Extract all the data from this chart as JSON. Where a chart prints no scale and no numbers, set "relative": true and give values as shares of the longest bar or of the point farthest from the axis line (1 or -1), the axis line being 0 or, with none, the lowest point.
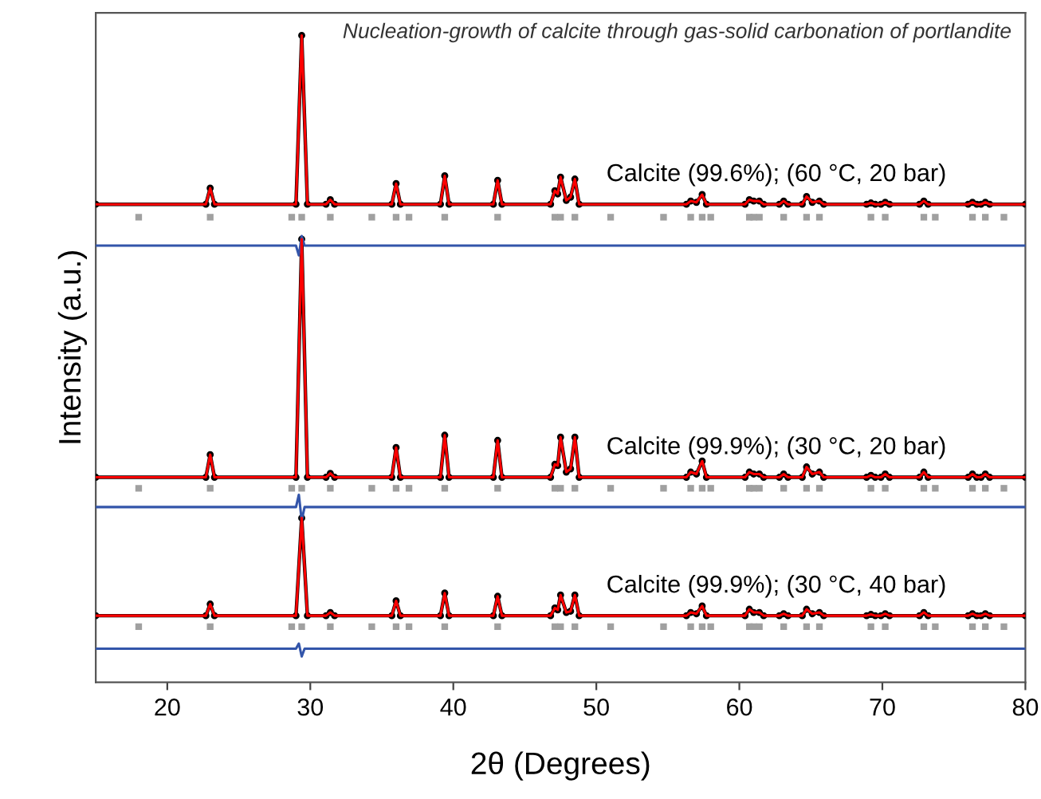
{
  "chart_data": {
    "type": "line",
    "relative": true,
    "title": "Nucleation-growth of calcite through gas-solid carbonation of portlandite",
    "xlabel": "2θ (Degrees)",
    "ylabel": "Intensity (a.u.)",
    "xlim": [
      15,
      80
    ],
    "xticks": [
      20,
      30,
      40,
      50,
      60,
      70,
      80
    ],
    "grid": false,
    "legend": false,
    "tick_labels": "x",
    "series": [
      {
        "name": "Calcite (99.6%); (60 °C, 20 bar)",
        "color": "#000000",
        "marker": "circle",
        "x": [
          15,
          22.7,
          23.0,
          23.3,
          29.0,
          29.4,
          29.8,
          31.1,
          31.4,
          31.7,
          35.7,
          36.0,
          36.3,
          39.1,
          39.4,
          39.7,
          42.8,
          43.1,
          43.4,
          46.8,
          47.1,
          47.3,
          47.5,
          47.9,
          48.2,
          48.5,
          48.8,
          56.3,
          56.6,
          57.0,
          57.4,
          57.7,
          60.4,
          60.7,
          61.0,
          61.4,
          61.7,
          62.8,
          63.1,
          63.4,
          64.4,
          64.7,
          65.1,
          65.6,
          65.9,
          68.9,
          69.2,
          69.5,
          69.9,
          70.2,
          70.5,
          72.6,
          72.9,
          73.2,
          76.0,
          76.3,
          76.6,
          76.9,
          77.2,
          77.5,
          80
        ],
        "values": [
          0.739,
          0.739,
          0.764,
          0.739,
          0.739,
          1.0,
          0.739,
          0.739,
          0.746,
          0.739,
          0.739,
          0.771,
          0.739,
          0.739,
          0.783,
          0.739,
          0.739,
          0.776,
          0.739,
          0.739,
          0.76,
          0.755,
          0.781,
          0.745,
          0.75,
          0.778,
          0.739,
          0.739,
          0.744,
          0.742,
          0.754,
          0.739,
          0.739,
          0.746,
          0.744,
          0.744,
          0.739,
          0.739,
          0.744,
          0.739,
          0.739,
          0.751,
          0.742,
          0.744,
          0.739,
          0.739,
          0.741,
          0.739,
          0.739,
          0.742,
          0.739,
          0.739,
          0.744,
          0.739,
          0.739,
          0.742,
          0.739,
          0.739,
          0.742,
          0.739,
          0.739
        ]
      },
      {
        "color": "#ff0000",
        "x": [
          15,
          22.7,
          23.0,
          23.3,
          29.0,
          29.4,
          29.8,
          31.1,
          31.4,
          31.7,
          35.7,
          36.0,
          36.3,
          39.1,
          39.4,
          39.7,
          42.8,
          43.1,
          43.4,
          46.8,
          47.1,
          47.3,
          47.5,
          47.9,
          48.2,
          48.5,
          48.8,
          56.3,
          56.6,
          57.0,
          57.4,
          57.7,
          60.4,
          60.7,
          61.0,
          61.4,
          61.7,
          62.8,
          63.1,
          63.4,
          64.4,
          64.7,
          65.1,
          65.6,
          65.9,
          68.9,
          69.2,
          69.5,
          69.9,
          70.2,
          70.5,
          72.6,
          72.9,
          73.2,
          76.0,
          76.3,
          76.6,
          76.9,
          77.2,
          77.5,
          80
        ],
        "values": [
          0.739,
          0.739,
          0.764,
          0.739,
          0.739,
          1.0,
          0.739,
          0.739,
          0.746,
          0.739,
          0.739,
          0.771,
          0.739,
          0.739,
          0.783,
          0.739,
          0.739,
          0.776,
          0.739,
          0.739,
          0.76,
          0.755,
          0.781,
          0.745,
          0.75,
          0.778,
          0.739,
          0.739,
          0.744,
          0.742,
          0.754,
          0.739,
          0.739,
          0.746,
          0.744,
          0.744,
          0.739,
          0.739,
          0.744,
          0.739,
          0.739,
          0.751,
          0.742,
          0.744,
          0.739,
          0.739,
          0.741,
          0.739,
          0.739,
          0.742,
          0.739,
          0.739,
          0.744,
          0.739,
          0.739,
          0.742,
          0.739,
          0.739,
          0.742,
          0.739,
          0.739
        ]
      },
      {
        "type": "scatter",
        "color": "#a0a0a0",
        "marker": "square",
        "x": [
          18.0,
          23.0,
          28.7,
          29.4,
          31.4,
          34.3,
          36.0,
          36.9,
          39.4,
          43.1,
          47.1,
          47.5,
          48.5,
          51.0,
          54.7,
          56.6,
          57.4,
          58.0,
          60.7,
          61.0,
          61.4,
          63.1,
          64.7,
          65.6,
          69.2,
          70.2,
          72.9,
          73.7,
          76.3,
          77.2,
          78.5
        ],
        "values": [
          0.719,
          0.719,
          0.719,
          0.719,
          0.719,
          0.719,
          0.719,
          0.719,
          0.719,
          0.719,
          0.719,
          0.719,
          0.719,
          0.719,
          0.719,
          0.719,
          0.719,
          0.719,
          0.719,
          0.719,
          0.719,
          0.719,
          0.719,
          0.719,
          0.719,
          0.719,
          0.719,
          0.719,
          0.719,
          0.719,
          0.719
        ]
      },
      {
        "color": "#3355aa",
        "x": [
          15,
          29.0,
          29.2,
          29.4,
          29.6,
          80
        ],
        "values": [
          0.675,
          0.675,
          0.66,
          0.69,
          0.675,
          0.675
        ]
      },
      {
        "name": "Calcite (99.9%); (30 °C, 20 bar)",
        "color": "#000000",
        "marker": "circle",
        "x": [
          15,
          22.7,
          23.0,
          23.3,
          29.0,
          29.4,
          29.8,
          31.1,
          31.4,
          31.7,
          35.7,
          36.0,
          36.3,
          39.1,
          39.4,
          39.7,
          42.8,
          43.1,
          43.4,
          46.8,
          47.1,
          47.3,
          47.5,
          47.9,
          48.2,
          48.5,
          48.8,
          56.3,
          56.6,
          57.0,
          57.4,
          57.7,
          60.4,
          60.7,
          61.0,
          61.4,
          61.7,
          62.8,
          63.1,
          63.4,
          64.4,
          64.7,
          65.1,
          65.6,
          65.9,
          68.9,
          69.2,
          69.5,
          69.9,
          70.2,
          70.5,
          72.6,
          72.9,
          73.2,
          76.0,
          76.3,
          76.6,
          76.9,
          77.2,
          77.5,
          80
        ],
        "values": [
          0.317,
          0.317,
          0.352,
          0.317,
          0.317,
          0.685,
          0.317,
          0.317,
          0.323,
          0.317,
          0.317,
          0.363,
          0.317,
          0.317,
          0.382,
          0.317,
          0.317,
          0.374,
          0.317,
          0.317,
          0.337,
          0.335,
          0.379,
          0.325,
          0.33,
          0.379,
          0.317,
          0.317,
          0.325,
          0.322,
          0.342,
          0.317,
          0.317,
          0.325,
          0.322,
          0.322,
          0.317,
          0.317,
          0.322,
          0.317,
          0.317,
          0.333,
          0.322,
          0.325,
          0.317,
          0.317,
          0.32,
          0.317,
          0.317,
          0.322,
          0.317,
          0.317,
          0.325,
          0.317,
          0.317,
          0.322,
          0.317,
          0.317,
          0.322,
          0.317,
          0.317
        ]
      },
      {
        "color": "#ff0000",
        "x": [
          15,
          22.7,
          23.0,
          23.3,
          29.0,
          29.4,
          29.8,
          31.1,
          31.4,
          31.7,
          35.7,
          36.0,
          36.3,
          39.1,
          39.4,
          39.7,
          42.8,
          43.1,
          43.4,
          46.8,
          47.1,
          47.3,
          47.5,
          47.9,
          48.2,
          48.5,
          48.8,
          56.3,
          56.6,
          57.0,
          57.4,
          57.7,
          60.4,
          60.7,
          61.0,
          61.4,
          61.7,
          62.8,
          63.1,
          63.4,
          64.4,
          64.7,
          65.1,
          65.6,
          65.9,
          68.9,
          69.2,
          69.5,
          69.9,
          70.2,
          70.5,
          72.6,
          72.9,
          73.2,
          76.0,
          76.3,
          76.6,
          76.9,
          77.2,
          77.5,
          80
        ],
        "values": [
          0.317,
          0.317,
          0.352,
          0.317,
          0.317,
          0.685,
          0.317,
          0.317,
          0.323,
          0.317,
          0.317,
          0.363,
          0.317,
          0.317,
          0.382,
          0.317,
          0.317,
          0.374,
          0.317,
          0.317,
          0.337,
          0.335,
          0.379,
          0.325,
          0.33,
          0.379,
          0.317,
          0.317,
          0.325,
          0.322,
          0.342,
          0.317,
          0.317,
          0.325,
          0.322,
          0.322,
          0.317,
          0.317,
          0.322,
          0.317,
          0.317,
          0.333,
          0.322,
          0.325,
          0.317,
          0.317,
          0.32,
          0.317,
          0.317,
          0.322,
          0.317,
          0.317,
          0.325,
          0.317,
          0.317,
          0.322,
          0.317,
          0.317,
          0.322,
          0.317,
          0.317
        ]
      },
      {
        "type": "scatter",
        "color": "#a0a0a0",
        "marker": "square",
        "x": [
          18.0,
          23.0,
          28.7,
          29.4,
          31.4,
          34.3,
          36.0,
          36.9,
          39.4,
          43.1,
          47.1,
          47.5,
          48.5,
          51.0,
          54.7,
          56.6,
          57.4,
          58.0,
          60.7,
          61.0,
          61.4,
          63.1,
          64.7,
          65.6,
          69.2,
          70.2,
          72.9,
          73.7,
          76.3,
          77.2,
          78.5
        ],
        "values": [
          0.3,
          0.3,
          0.3,
          0.3,
          0.3,
          0.3,
          0.3,
          0.3,
          0.3,
          0.3,
          0.3,
          0.3,
          0.3,
          0.3,
          0.3,
          0.3,
          0.3,
          0.3,
          0.3,
          0.3,
          0.3,
          0.3,
          0.3,
          0.3,
          0.3,
          0.3,
          0.3,
          0.3,
          0.3,
          0.3,
          0.3
        ]
      },
      {
        "color": "#3355aa",
        "x": [
          15,
          29.0,
          29.2,
          29.4,
          29.6,
          80
        ],
        "values": [
          0.271,
          0.271,
          0.29,
          0.25,
          0.271,
          0.271
        ]
      },
      {
        "name": "Calcite (99.9%); (30 °C, 40 bar)",
        "color": "#000000",
        "marker": "circle",
        "x": [
          15,
          22.7,
          23.0,
          23.3,
          29.0,
          29.4,
          29.8,
          31.1,
          31.4,
          31.7,
          35.7,
          36.0,
          36.3,
          39.1,
          39.4,
          39.7,
          42.8,
          43.1,
          43.4,
          46.8,
          47.1,
          47.3,
          47.5,
          47.9,
          48.2,
          48.5,
          48.8,
          56.3,
          56.6,
          57.0,
          57.4,
          57.7,
          60.4,
          60.7,
          61.0,
          61.4,
          61.7,
          62.8,
          63.1,
          63.4,
          64.4,
          64.7,
          65.1,
          65.6,
          65.9,
          68.9,
          69.2,
          69.5,
          69.9,
          70.2,
          70.5,
          72.6,
          72.9,
          73.2,
          76.0,
          76.3,
          76.6,
          76.9,
          77.2,
          77.5,
          80
        ],
        "values": [
          0.103,
          0.103,
          0.121,
          0.103,
          0.103,
          0.254,
          0.103,
          0.103,
          0.108,
          0.103,
          0.103,
          0.126,
          0.103,
          0.103,
          0.138,
          0.103,
          0.103,
          0.133,
          0.103,
          0.103,
          0.115,
          0.112,
          0.135,
          0.108,
          0.11,
          0.135,
          0.103,
          0.103,
          0.108,
          0.106,
          0.118,
          0.103,
          0.103,
          0.113,
          0.108,
          0.108,
          0.103,
          0.103,
          0.106,
          0.103,
          0.103,
          0.113,
          0.106,
          0.108,
          0.103,
          0.103,
          0.105,
          0.103,
          0.103,
          0.106,
          0.103,
          0.103,
          0.108,
          0.103,
          0.103,
          0.106,
          0.103,
          0.103,
          0.106,
          0.103,
          0.103
        ]
      },
      {
        "color": "#ff0000",
        "x": [
          15,
          22.7,
          23.0,
          23.3,
          29.0,
          29.4,
          29.8,
          31.1,
          31.4,
          31.7,
          35.7,
          36.0,
          36.3,
          39.1,
          39.4,
          39.7,
          42.8,
          43.1,
          43.4,
          46.8,
          47.1,
          47.3,
          47.5,
          47.9,
          48.2,
          48.5,
          48.8,
          56.3,
          56.6,
          57.0,
          57.4,
          57.7,
          60.4,
          60.7,
          61.0,
          61.4,
          61.7,
          62.8,
          63.1,
          63.4,
          64.4,
          64.7,
          65.1,
          65.6,
          65.9,
          68.9,
          69.2,
          69.5,
          69.9,
          70.2,
          70.5,
          72.6,
          72.9,
          73.2,
          76.0,
          76.3,
          76.6,
          76.9,
          77.2,
          77.5,
          80
        ],
        "values": [
          0.103,
          0.103,
          0.121,
          0.103,
          0.103,
          0.254,
          0.103,
          0.103,
          0.108,
          0.103,
          0.103,
          0.126,
          0.103,
          0.103,
          0.138,
          0.103,
          0.103,
          0.133,
          0.103,
          0.103,
          0.115,
          0.112,
          0.135,
          0.108,
          0.11,
          0.135,
          0.103,
          0.103,
          0.108,
          0.106,
          0.118,
          0.103,
          0.103,
          0.113,
          0.108,
          0.108,
          0.103,
          0.103,
          0.106,
          0.103,
          0.103,
          0.113,
          0.106,
          0.108,
          0.103,
          0.103,
          0.105,
          0.103,
          0.103,
          0.106,
          0.103,
          0.103,
          0.108,
          0.103,
          0.103,
          0.106,
          0.103,
          0.103,
          0.106,
          0.103,
          0.103
        ]
      },
      {
        "type": "scatter",
        "color": "#a0a0a0",
        "marker": "square",
        "x": [
          18.0,
          23.0,
          28.7,
          29.4,
          31.4,
          34.3,
          36.0,
          36.9,
          39.4,
          43.1,
          47.1,
          47.5,
          48.5,
          51.0,
          54.7,
          56.6,
          57.4,
          58.0,
          60.7,
          61.0,
          61.4,
          63.1,
          64.7,
          65.6,
          69.2,
          70.2,
          72.9,
          73.7,
          76.3,
          77.2,
          78.5
        ],
        "values": [
          0.086,
          0.086,
          0.086,
          0.086,
          0.086,
          0.086,
          0.086,
          0.086,
          0.086,
          0.086,
          0.086,
          0.086,
          0.086,
          0.086,
          0.086,
          0.086,
          0.086,
          0.086,
          0.086,
          0.086,
          0.086,
          0.086,
          0.086,
          0.086,
          0.086,
          0.086,
          0.086,
          0.086,
          0.086,
          0.086,
          0.086
        ]
      },
      {
        "color": "#3355aa",
        "x": [
          15,
          29.0,
          29.2,
          29.4,
          29.6,
          80
        ],
        "values": [
          0.052,
          0.052,
          0.06,
          0.04,
          0.052,
          0.052
        ]
      }
    ]
  }
}
